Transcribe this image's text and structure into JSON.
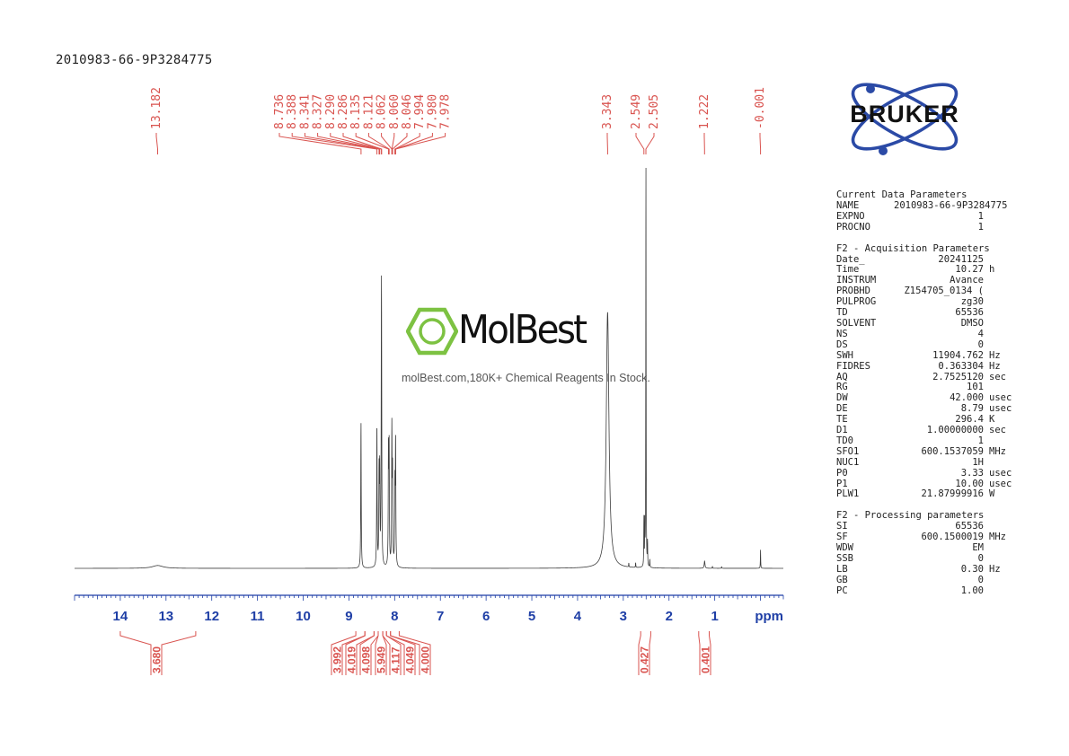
{
  "sample_title": "2010983-66-9P3284775",
  "watermark": {
    "brand": "MolBest",
    "tagline": "molBest.com,180K+ Chemical Reagents In Stock.",
    "color": "#7dc242"
  },
  "logo": {
    "text": "BRUKER",
    "ring_color": "#2b4aa6"
  },
  "parameters": {
    "current": {
      "title": "Current Data Parameters",
      "rows": [
        {
          "key": "NAME",
          "value": "2010983-66-9P3284775",
          "unit": ""
        },
        {
          "key": "EXPNO",
          "value": "1",
          "unit": ""
        },
        {
          "key": "PROCNO",
          "value": "1",
          "unit": ""
        }
      ]
    },
    "acquisition": {
      "title": "F2 - Acquisition Parameters",
      "rows": [
        {
          "key": "Date_",
          "value": "20241125",
          "unit": ""
        },
        {
          "key": "Time",
          "value": "10.27",
          "unit": "h"
        },
        {
          "key": "INSTRUM",
          "value": "Avance",
          "unit": ""
        },
        {
          "key": "PROBHD",
          "value": "Z154705_0134 (",
          "unit": ""
        },
        {
          "key": "PULPROG",
          "value": "zg30",
          "unit": ""
        },
        {
          "key": "TD",
          "value": "65536",
          "unit": ""
        },
        {
          "key": "SOLVENT",
          "value": "DMSO",
          "unit": ""
        },
        {
          "key": "NS",
          "value": "4",
          "unit": ""
        },
        {
          "key": "DS",
          "value": "0",
          "unit": ""
        },
        {
          "key": "SWH",
          "value": "11904.762",
          "unit": "Hz"
        },
        {
          "key": "FIDRES",
          "value": "0.363304",
          "unit": "Hz"
        },
        {
          "key": "AQ",
          "value": "2.7525120",
          "unit": "sec"
        },
        {
          "key": "RG",
          "value": "101",
          "unit": ""
        },
        {
          "key": "DW",
          "value": "42.000",
          "unit": "usec"
        },
        {
          "key": "DE",
          "value": "8.79",
          "unit": "usec"
        },
        {
          "key": "TE",
          "value": "296.4",
          "unit": "K"
        },
        {
          "key": "D1",
          "value": "1.00000000",
          "unit": "sec"
        },
        {
          "key": "TD0",
          "value": "1",
          "unit": ""
        },
        {
          "key": "SFO1",
          "value": "600.1537059",
          "unit": "MHz"
        },
        {
          "key": "NUC1",
          "value": "1H",
          "unit": ""
        },
        {
          "key": "P0",
          "value": "3.33",
          "unit": "usec"
        },
        {
          "key": "P1",
          "value": "10.00",
          "unit": "usec"
        },
        {
          "key": "PLW1",
          "value": "21.87999916",
          "unit": "W"
        }
      ]
    },
    "processing": {
      "title": "F2 - Processing parameters",
      "rows": [
        {
          "key": "SI",
          "value": "65536",
          "unit": ""
        },
        {
          "key": "SF",
          "value": "600.1500019",
          "unit": "MHz"
        },
        {
          "key": "WDW",
          "value": "EM",
          "unit": ""
        },
        {
          "key": "SSB",
          "value": "0",
          "unit": ""
        },
        {
          "key": "LB",
          "value": "0.30",
          "unit": "Hz"
        },
        {
          "key": "GB",
          "value": "0",
          "unit": ""
        },
        {
          "key": "PC",
          "value": "1.00",
          "unit": ""
        }
      ]
    }
  },
  "chart_data": {
    "type": "line",
    "xlabel": "ppm",
    "xlim": [
      15.0,
      -0.5
    ],
    "x_reversed": true,
    "x_ticks": [
      14,
      13,
      12,
      11,
      10,
      9,
      8,
      7,
      6,
      5,
      4,
      3,
      2,
      1
    ],
    "axis_color": "#1f3fa6",
    "peak_label_color": "#d9534f",
    "integral_color": "#d9534f",
    "peaks": [
      {
        "ppm": 13.182,
        "label": "13.182",
        "height": 0.007,
        "width": 0.14
      },
      {
        "ppm": 8.736,
        "label": "8.736",
        "height": 0.36,
        "width": 0.006
      },
      {
        "ppm": 8.388,
        "label": "8.388",
        "height": 0.35,
        "width": 0.006
      },
      {
        "ppm": 8.341,
        "label": "8.341",
        "height": 0.22,
        "width": 0.006
      },
      {
        "ppm": 8.327,
        "label": "8.327",
        "height": 0.22,
        "width": 0.006
      },
      {
        "ppm": 8.29,
        "label": "8.290",
        "height": 0.5,
        "width": 0.006
      },
      {
        "ppm": 8.286,
        "label": "8.286",
        "height": 0.28,
        "width": 0.006
      },
      {
        "ppm": 8.135,
        "label": "8.135",
        "height": 0.28,
        "width": 0.006
      },
      {
        "ppm": 8.121,
        "label": "8.121",
        "height": 0.28,
        "width": 0.006
      },
      {
        "ppm": 8.062,
        "label": "8.062",
        "height": 0.22,
        "width": 0.006
      },
      {
        "ppm": 8.06,
        "label": "8.060",
        "height": 0.12,
        "width": 0.006
      },
      {
        "ppm": 8.046,
        "label": "8.046",
        "height": 0.22,
        "width": 0.006
      },
      {
        "ppm": 7.994,
        "label": "7.994",
        "height": 0.19,
        "width": 0.006
      },
      {
        "ppm": 7.98,
        "label": "7.980",
        "height": 0.19,
        "width": 0.006
      },
      {
        "ppm": 7.978,
        "label": "7.978",
        "height": 0.12,
        "width": 0.006
      },
      {
        "ppm": 3.343,
        "label": "3.343",
        "height": 0.63,
        "width": 0.035
      },
      {
        "ppm": 2.549,
        "label": "2.549",
        "height": 0.12,
        "width": 0.004
      },
      {
        "ppm": 2.505,
        "label": "2.505",
        "height": 1.0,
        "width": 0.004
      },
      {
        "ppm": 1.222,
        "label": "1.222",
        "height": 0.018,
        "width": 0.01
      },
      {
        "ppm": -0.001,
        "label": "-0.001",
        "height": 0.046,
        "width": 0.004
      }
    ],
    "minor_peaks": [
      {
        "ppm": 2.88,
        "height": 0.01
      },
      {
        "ppm": 2.73,
        "height": 0.012
      },
      {
        "ppm": 2.42,
        "height": 0.02
      },
      {
        "ppm": 2.47,
        "height": 0.06
      },
      {
        "ppm": 2.53,
        "height": 0.1
      },
      {
        "ppm": 1.05,
        "height": 0.005
      },
      {
        "ppm": 0.85,
        "height": 0.004
      }
    ],
    "integrals": [
      {
        "from": 14.0,
        "to": 12.35,
        "value": "3.680"
      },
      {
        "from": 8.85,
        "to": 8.65,
        "value": "3.992"
      },
      {
        "from": 8.65,
        "to": 8.45,
        "value": "4.019"
      },
      {
        "from": 8.45,
        "to": 8.36,
        "value": "4.098"
      },
      {
        "from": 8.36,
        "to": 8.26,
        "value": "5.949"
      },
      {
        "from": 8.26,
        "to": 8.18,
        "value": "4.117"
      },
      {
        "from": 8.18,
        "to": 8.09,
        "value": "4.049"
      },
      {
        "from": 8.09,
        "to": 7.9,
        "value": "4.000"
      },
      {
        "from": 2.62,
        "to": 2.4,
        "value": "0.427"
      },
      {
        "from": 1.35,
        "to": 1.12,
        "value": "0.401"
      }
    ]
  }
}
